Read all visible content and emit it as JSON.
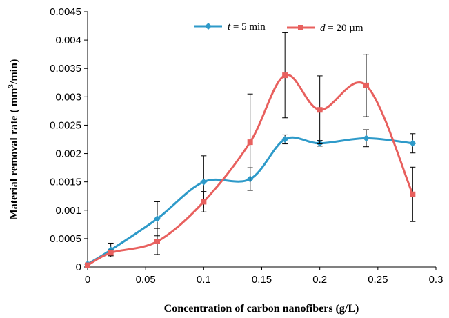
{
  "chart_data": {
    "type": "line",
    "title": "",
    "xlabel": "Concentration of carbon nanofibers  (g/L)",
    "ylabel_main": "Material removal rate ( mm",
    "ylabel_sup": "3",
    "ylabel_tail": "/min)",
    "xlim": [
      0,
      0.3
    ],
    "ylim": [
      0,
      0.0045
    ],
    "x_ticks": [
      "0",
      "0.05",
      "0.1",
      "0.15",
      "0.2",
      "0.25",
      "0.3"
    ],
    "x_tick_values": [
      0,
      0.05,
      0.1,
      0.15,
      0.2,
      0.25,
      0.3
    ],
    "y_ticks": [
      "0",
      "0.0005",
      "0.001",
      "0.0015",
      "0.002",
      "0.0025",
      "0.003",
      "0.0035",
      "0.004",
      "0.0045"
    ],
    "y_tick_values": [
      0,
      0.0005,
      0.001,
      0.0015,
      0.002,
      0.0025,
      0.003,
      0.0035,
      0.004,
      0.0045
    ],
    "grid": false,
    "legend_position": "top-center",
    "series": [
      {
        "name_var": "t",
        "name_rest": " = 5 min",
        "color": "#2E9AC9",
        "marker": "diamond",
        "x": [
          0,
          0.02,
          0.06,
          0.1,
          0.14,
          0.17,
          0.2,
          0.24,
          0.28
        ],
        "y": [
          5e-05,
          0.0003,
          0.00085,
          0.0015,
          0.00155,
          0.00225,
          0.00218,
          0.00227,
          0.00218
        ],
        "err": [
          0,
          0.00012,
          0.0003,
          0.00046,
          0.0002,
          8e-05,
          5e-05,
          0.00015,
          0.00017
        ]
      },
      {
        "name_var": "d",
        "name_rest": " = 20 µm",
        "color": "#E8605E",
        "marker": "square",
        "x": [
          0,
          0.02,
          0.06,
          0.1,
          0.14,
          0.17,
          0.2,
          0.24,
          0.28
        ],
        "y": [
          3e-05,
          0.00025,
          0.00045,
          0.00115,
          0.0022,
          0.00338,
          0.00277,
          0.0032,
          0.00128
        ],
        "err": [
          0,
          5e-05,
          0.00023,
          0.00018,
          0.00085,
          0.00075,
          0.0006,
          0.00055,
          0.00048
        ]
      }
    ]
  }
}
